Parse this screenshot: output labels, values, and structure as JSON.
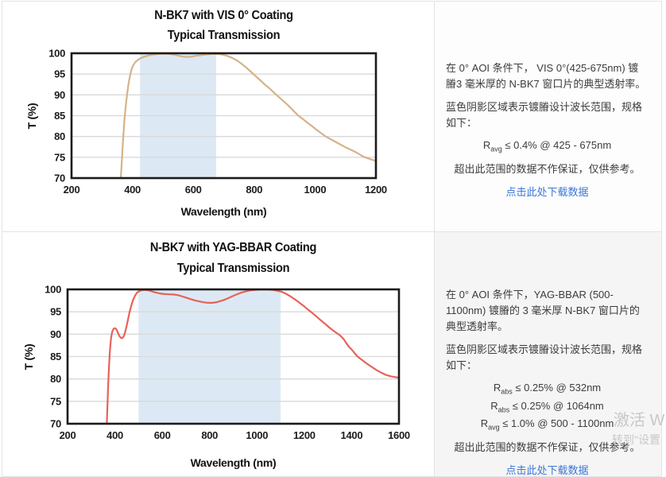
{
  "colors": {
    "link_blue": "#3b76d6",
    "band_blue": "#dce9f4",
    "grid_gray": "#d9d9d9",
    "axis_black": "#1b1b1b",
    "vis_curve_tan": "#d6b28a",
    "yag_curve_red": "#e8625a",
    "watermark_gray": "#c8c8c8"
  },
  "chart_data": [
    {
      "type": "line",
      "title": "N-BK7 with VIS 0° Coating",
      "subtitle": "Typical Transmission",
      "xlabel": "Wavelength (nm)",
      "ylabel": "T (%)",
      "xlim": [
        200,
        1200
      ],
      "ylim": [
        70,
        100
      ],
      "xticks": [
        200,
        400,
        600,
        800,
        1000,
        1200
      ],
      "yticks": [
        70,
        75,
        80,
        85,
        90,
        95,
        100
      ],
      "grid": true,
      "legend": "none",
      "shaded_band_nm": [
        425,
        675
      ],
      "band_color": "#dce9f4",
      "line_color": "#d6b28a",
      "series": [
        {
          "name": "Typical Transmission",
          "points": [
            [
              362,
              70
            ],
            [
              364,
              72.5
            ],
            [
              366,
              75
            ],
            [
              368,
              77.5
            ],
            [
              371,
              81
            ],
            [
              374,
              84
            ],
            [
              377,
              86.5
            ],
            [
              380,
              88.5
            ],
            [
              384,
              91
            ],
            [
              388,
              93
            ],
            [
              392,
              94.5
            ],
            [
              396,
              95.8
            ],
            [
              400,
              96.7
            ],
            [
              405,
              97.4
            ],
            [
              410,
              97.9
            ],
            [
              415,
              98.2
            ],
            [
              420,
              98.5
            ],
            [
              425,
              98.7
            ],
            [
              430,
              98.9
            ],
            [
              440,
              99.2
            ],
            [
              450,
              99.4
            ],
            [
              460,
              99.6
            ],
            [
              475,
              99.75
            ],
            [
              490,
              99.85
            ],
            [
              505,
              99.9
            ],
            [
              520,
              99.85
            ],
            [
              535,
              99.7
            ],
            [
              550,
              99.45
            ],
            [
              565,
              99.2
            ],
            [
              580,
              99.1
            ],
            [
              595,
              99.2
            ],
            [
              610,
              99.4
            ],
            [
              625,
              99.55
            ],
            [
              640,
              99.7
            ],
            [
              655,
              99.8
            ],
            [
              670,
              99.85
            ],
            [
              685,
              99.8
            ],
            [
              700,
              99.6
            ],
            [
              715,
              99.3
            ],
            [
              730,
              98.8
            ],
            [
              745,
              98.2
            ],
            [
              760,
              97.4
            ],
            [
              775,
              96.5
            ],
            [
              790,
              95.5
            ],
            [
              805,
              94.5
            ],
            [
              820,
              93.5
            ],
            [
              835,
              92.5
            ],
            [
              850,
              91.6
            ],
            [
              870,
              90.2
            ],
            [
              890,
              88.9
            ],
            [
              910,
              87.6
            ],
            [
              930,
              86.1
            ],
            [
              945,
              85.0
            ],
            [
              960,
              84.2
            ],
            [
              975,
              83.3
            ],
            [
              990,
              82.5
            ],
            [
              1005,
              81.6
            ],
            [
              1020,
              80.8
            ],
            [
              1035,
              80.0
            ],
            [
              1055,
              79.2
            ],
            [
              1075,
              78.4
            ],
            [
              1095,
              77.6
            ],
            [
              1115,
              76.9
            ],
            [
              1135,
              76.2
            ],
            [
              1160,
              75.1
            ],
            [
              1180,
              74.6
            ],
            [
              1200,
              74.1
            ]
          ]
        }
      ]
    },
    {
      "type": "line",
      "title": "N-BK7 with YAG-BBAR Coating",
      "subtitle": "Typical Transmission",
      "xlabel": "Wavelength (nm)",
      "ylabel": "T (%)",
      "xlim": [
        200,
        1600
      ],
      "ylim": [
        70,
        100
      ],
      "xticks": [
        200,
        400,
        600,
        800,
        1000,
        1200,
        1400,
        1600
      ],
      "yticks": [
        70,
        75,
        80,
        85,
        90,
        95,
        100
      ],
      "grid": true,
      "legend": "none",
      "shaded_band_nm": [
        500,
        1100
      ],
      "band_color": "#dce9f4",
      "line_color": "#e8625a",
      "series": [
        {
          "name": "Typical Transmission",
          "points": [
            [
              366,
              70
            ],
            [
              368,
              73
            ],
            [
              370,
              76
            ],
            [
              372,
              79
            ],
            [
              375,
              82.5
            ],
            [
              378,
              85.5
            ],
            [
              381,
              87.6
            ],
            [
              384,
              89.2
            ],
            [
              388,
              90.4
            ],
            [
              392,
              91.0
            ],
            [
              397,
              91.3
            ],
            [
              402,
              91.3
            ],
            [
              407,
              91.0
            ],
            [
              413,
              90.3
            ],
            [
              419,
              89.6
            ],
            [
              425,
              89.2
            ],
            [
              430,
              89.1
            ],
            [
              436,
              89.4
            ],
            [
              442,
              90.2
            ],
            [
              448,
              91.5
            ],
            [
              455,
              93.2
            ],
            [
              462,
              94.9
            ],
            [
              470,
              96.5
            ],
            [
              478,
              97.8
            ],
            [
              486,
              98.7
            ],
            [
              494,
              99.3
            ],
            [
              502,
              99.6
            ],
            [
              512,
              99.8
            ],
            [
              525,
              99.9
            ],
            [
              540,
              99.8
            ],
            [
              555,
              99.6
            ],
            [
              572,
              99.3
            ],
            [
              590,
              99.1
            ],
            [
              610,
              98.95
            ],
            [
              630,
              98.9
            ],
            [
              650,
              98.85
            ],
            [
              668,
              98.7
            ],
            [
              686,
              98.4
            ],
            [
              704,
              98.1
            ],
            [
              722,
              97.8
            ],
            [
              740,
              97.5
            ],
            [
              758,
              97.3
            ],
            [
              776,
              97.1
            ],
            [
              794,
              97.0
            ],
            [
              812,
              97.0
            ],
            [
              830,
              97.15
            ],
            [
              848,
              97.4
            ],
            [
              866,
              97.75
            ],
            [
              884,
              98.15
            ],
            [
              902,
              98.6
            ],
            [
              920,
              99.0
            ],
            [
              938,
              99.35
            ],
            [
              956,
              99.6
            ],
            [
              974,
              99.8
            ],
            [
              992,
              99.9
            ],
            [
              1010,
              99.95
            ],
            [
              1030,
              100
            ],
            [
              1050,
              99.95
            ],
            [
              1070,
              99.85
            ],
            [
              1090,
              99.65
            ],
            [
              1105,
              99.45
            ],
            [
              1120,
              99.1
            ],
            [
              1140,
              98.5
            ],
            [
              1160,
              97.8
            ],
            [
              1180,
              97.0
            ],
            [
              1200,
              96.2
            ],
            [
              1215,
              95.5
            ],
            [
              1230,
              94.9
            ],
            [
              1250,
              94.0
            ],
            [
              1270,
              93.1
            ],
            [
              1290,
              92.2
            ],
            [
              1310,
              91.3
            ],
            [
              1330,
              90.5
            ],
            [
              1350,
              89.8
            ],
            [
              1365,
              89.0
            ],
            [
              1380,
              87.8
            ],
            [
              1390,
              87.1
            ],
            [
              1400,
              86.6
            ],
            [
              1412,
              85.8
            ],
            [
              1425,
              85.0
            ],
            [
              1445,
              84.2
            ],
            [
              1465,
              83.4
            ],
            [
              1485,
              82.7
            ],
            [
              1505,
              82.0
            ],
            [
              1525,
              81.4
            ],
            [
              1545,
              80.9
            ],
            [
              1565,
              80.6
            ],
            [
              1585,
              80.4
            ],
            [
              1600,
              80.3
            ]
          ]
        }
      ]
    }
  ],
  "panels": [
    {
      "p1": "在 0° AOI 条件下， VIS 0°(425-675nm) 镀膡3 毫米厚的 N-BK7 窗口片的典型透射率。",
      "p2": "蓝色阴影区域表示镀膡设计波长范围，规格如下：",
      "specs": [
        {
          "base": "R",
          "sub": "avg",
          "rest": " ≤ 0.4% @ 425 - 675nm"
        }
      ],
      "note": "超出此范围的数据不作保证，仅供参考。",
      "link": "点击此处下载数据"
    },
    {
      "p1": "在 0° AOI 条件下，YAG-BBAR (500-1100nm) 镀膡的 3 毫米厚 N-BK7 窗口片的典型透射率。",
      "p2": "蓝色阴影区域表示镀膡设计波长范围，规格如下：",
      "specs": [
        {
          "base": "R",
          "sub": "abs",
          "rest": " ≤ 0.25% @ 532nm"
        },
        {
          "base": "R",
          "sub": "abs",
          "rest": " ≤ 0.25% @ 1064nm"
        },
        {
          "base": "R",
          "sub": "avg",
          "rest": " ≤ 1.0% @ 500 - 1100nm"
        }
      ],
      "note": "超出此范围的数据不作保证，仅供参考。",
      "link": "点击此处下载数据"
    }
  ],
  "watermark": {
    "line1": "激活 W",
    "line2": "转到\"设置"
  }
}
